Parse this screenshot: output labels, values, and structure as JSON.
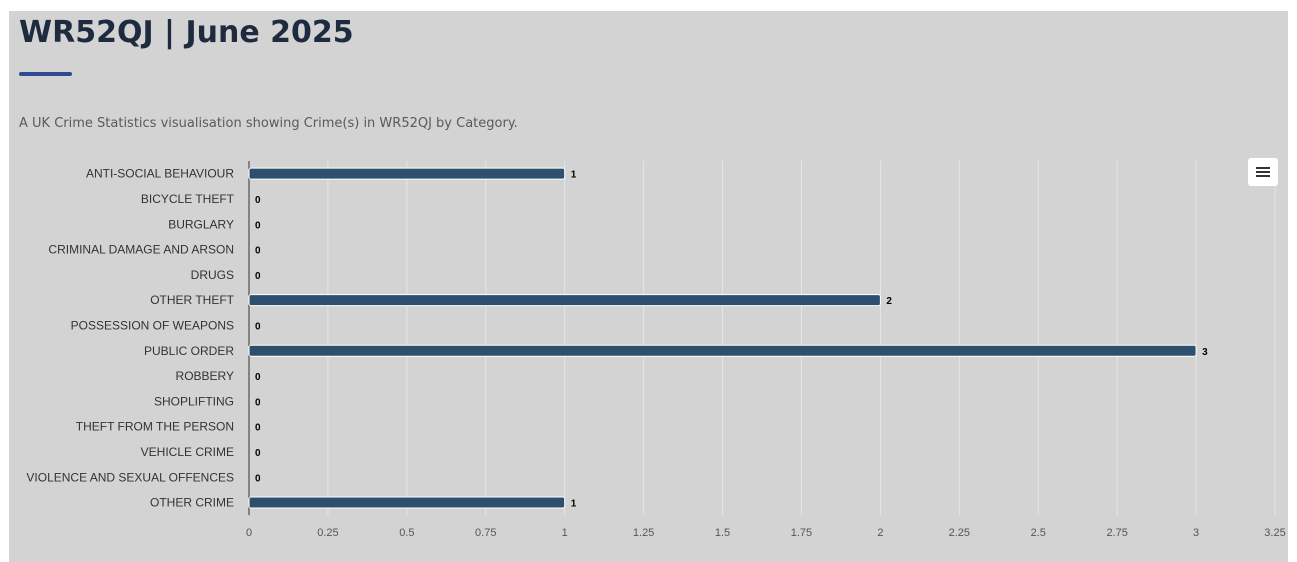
{
  "header": {
    "title": "WR52QJ | June 2025",
    "subtitle": "A UK Crime Statistics visualisation showing Crime(s) in WR52QJ by Category."
  },
  "toolbar": {
    "menu_icon": "hamburger-menu-icon"
  },
  "colors": {
    "background": "#d3d3d3",
    "bar": "#2f4f6e",
    "title": "#1e2b3f",
    "accent": "#2f4a92",
    "grid": "#e6e6e6"
  },
  "chart_data": {
    "type": "bar",
    "orientation": "horizontal",
    "categories": [
      "ANTI-SOCIAL BEHAVIOUR",
      "BICYCLE THEFT",
      "BURGLARY",
      "CRIMINAL DAMAGE AND ARSON",
      "DRUGS",
      "OTHER THEFT",
      "POSSESSION OF WEAPONS",
      "PUBLIC ORDER",
      "ROBBERY",
      "SHOPLIFTING",
      "THEFT FROM THE PERSON",
      "VEHICLE CRIME",
      "VIOLENCE AND SEXUAL OFFENCES",
      "OTHER CRIME"
    ],
    "values": [
      1,
      0,
      0,
      0,
      0,
      2,
      0,
      3,
      0,
      0,
      0,
      0,
      0,
      1
    ],
    "xlim": [
      0,
      3.25
    ],
    "xticks": [
      0,
      0.25,
      0.5,
      0.75,
      1,
      1.25,
      1.5,
      1.75,
      2,
      2.25,
      2.5,
      2.75,
      3,
      3.25
    ],
    "xtick_labels": [
      "0",
      "0.25",
      "0.5",
      "0.75",
      "1",
      "1.25",
      "1.5",
      "1.75",
      "2",
      "2.25",
      "2.5",
      "2.75",
      "3",
      "3.25"
    ],
    "data_labels": true,
    "grid": true,
    "legend": "none",
    "xlabel": "",
    "ylabel": ""
  }
}
